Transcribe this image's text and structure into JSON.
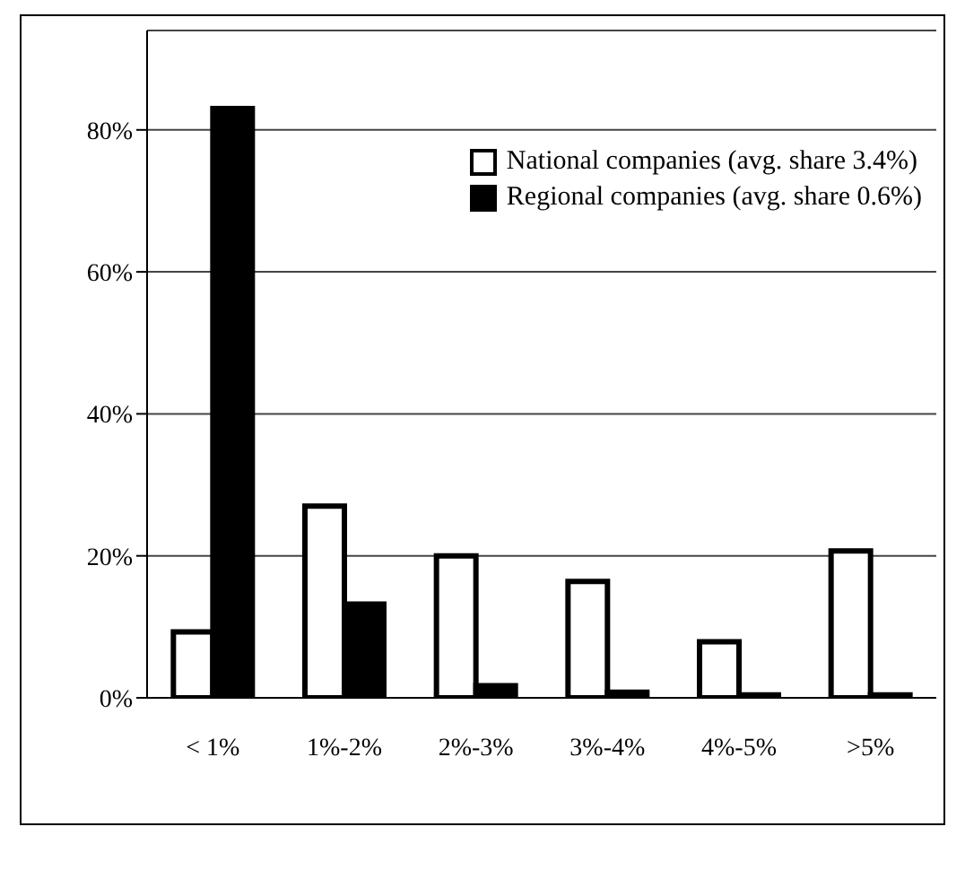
{
  "chart_data": {
    "type": "bar",
    "categories": [
      "< 1%",
      "1%-2%",
      "2%-3%",
      "3%-4%",
      "4%-5%",
      ">5%"
    ],
    "series": [
      {
        "name": "National companies (avg. share 3.4%)",
        "color": "#ffffff",
        "values": [
          9.3,
          27,
          20,
          16.4,
          7.9,
          20.7
        ]
      },
      {
        "name": "Regional companies (avg. share 0.6%)",
        "color": "#000000",
        "values": [
          83,
          13.2,
          1.7,
          0.8,
          0.4,
          0.4
        ]
      }
    ],
    "ylim": [
      0,
      94
    ],
    "yticks": [
      {
        "value": 0,
        "label": "0%"
      },
      {
        "value": 20,
        "label": "20%"
      },
      {
        "value": 40,
        "label": "40%"
      },
      {
        "value": 60,
        "label": "60%"
      },
      {
        "value": 80,
        "label": "80%"
      }
    ],
    "grid": "y",
    "legend": "top right"
  }
}
